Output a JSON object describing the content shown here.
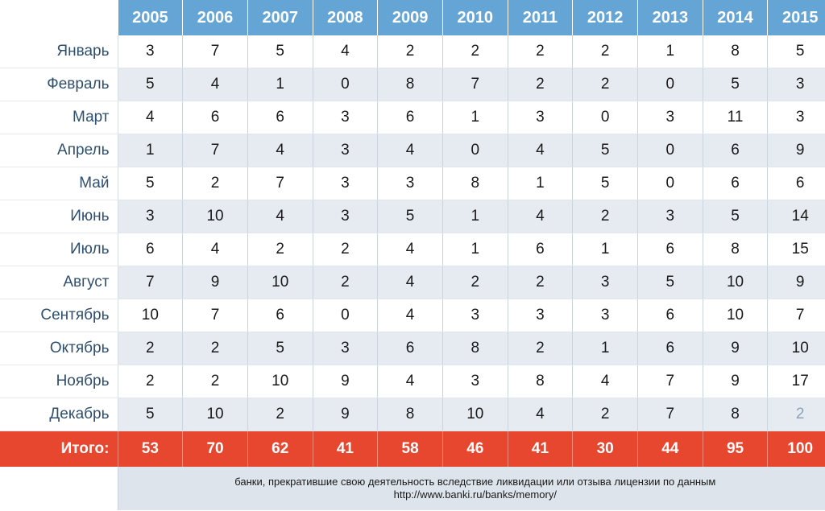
{
  "chart_data": {
    "type": "table",
    "columns": [
      "2005",
      "2006",
      "2007",
      "2008",
      "2009",
      "2010",
      "2011",
      "2012",
      "2013",
      "2014",
      "2015"
    ],
    "rows": [
      {
        "label": "Январь",
        "values": [
          3,
          7,
          5,
          4,
          2,
          2,
          2,
          2,
          1,
          8,
          5
        ]
      },
      {
        "label": "Февраль",
        "values": [
          5,
          4,
          1,
          0,
          8,
          7,
          2,
          2,
          0,
          5,
          3
        ]
      },
      {
        "label": "Март",
        "values": [
          4,
          6,
          6,
          3,
          6,
          1,
          3,
          0,
          3,
          11,
          3
        ]
      },
      {
        "label": "Апрель",
        "values": [
          1,
          7,
          4,
          3,
          4,
          0,
          4,
          5,
          0,
          6,
          9
        ]
      },
      {
        "label": "Май",
        "values": [
          5,
          2,
          7,
          3,
          3,
          8,
          1,
          5,
          0,
          6,
          6
        ]
      },
      {
        "label": "Июнь",
        "values": [
          3,
          10,
          4,
          3,
          5,
          1,
          4,
          2,
          3,
          5,
          14
        ]
      },
      {
        "label": "Июль",
        "values": [
          6,
          4,
          2,
          2,
          4,
          1,
          6,
          1,
          6,
          8,
          15
        ]
      },
      {
        "label": "Август",
        "values": [
          7,
          9,
          10,
          2,
          4,
          2,
          2,
          3,
          5,
          10,
          9
        ]
      },
      {
        "label": "Сентябрь",
        "values": [
          10,
          7,
          6,
          0,
          4,
          3,
          3,
          3,
          6,
          10,
          7
        ]
      },
      {
        "label": "Октябрь",
        "values": [
          2,
          2,
          5,
          3,
          6,
          8,
          2,
          1,
          6,
          9,
          10
        ]
      },
      {
        "label": "Ноябрь",
        "values": [
          2,
          2,
          10,
          9,
          4,
          3,
          8,
          4,
          7,
          9,
          17
        ]
      },
      {
        "label": "Декабрь",
        "values": [
          5,
          10,
          2,
          9,
          8,
          10,
          4,
          2,
          7,
          8,
          2
        ]
      }
    ],
    "totals": {
      "label": "Итого:",
      "values": [
        53,
        70,
        62,
        41,
        58,
        46,
        41,
        30,
        44,
        95,
        100
      ]
    },
    "footnote": {
      "line1": "банки, прекратившие свою деятельность вследствие ликвидации или отзыва лицензии по данным",
      "line2": "http://www.banki.ru/banks/memory/"
    },
    "colors": {
      "header": "#64a5d6",
      "total_row": "#e8472f",
      "stripe": "#e6ebf1",
      "month_text": "#2f4f6e"
    }
  }
}
